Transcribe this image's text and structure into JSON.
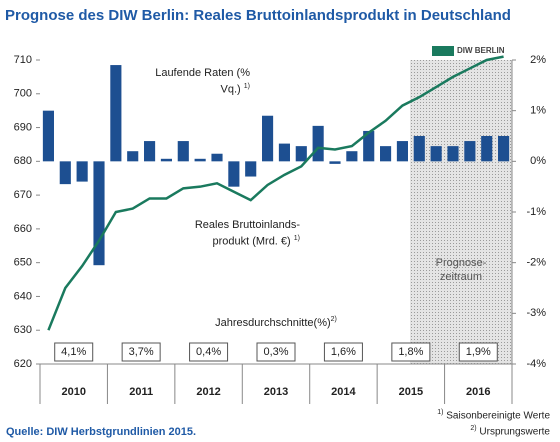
{
  "chart_data": {
    "type": "combo",
    "title": "Prognose des DIW Berlin: Reales Bruttoinlandsprodukt in Deutschland",
    "logo": "DIW BERLIN",
    "years": [
      "2010",
      "2011",
      "2012",
      "2013",
      "2014",
      "2015",
      "2016"
    ],
    "series": [
      {
        "name": "Laufende Raten (% Vq.)",
        "footnote_mark": "1)",
        "type": "bar",
        "axis": "y2",
        "color": "#1d4f91",
        "values": [
          1.0,
          -0.45,
          -0.4,
          -2.05,
          1.9,
          0.2,
          0.4,
          0.05,
          0.4,
          0.05,
          0.15,
          -0.5,
          -0.3,
          0.9,
          0.35,
          0.3,
          0.7,
          -0.05,
          0.2,
          0.6,
          0.3,
          0.4,
          0.5,
          0.3,
          0.3,
          0.4,
          0.5,
          0.5
        ]
      },
      {
        "name": "Reales Bruttoinlands-produkt (Mrd. €)",
        "footnote_mark": "1)",
        "type": "line",
        "color": "#1a7a5e",
        "values": [
          630,
          642.5,
          649,
          656.5,
          665,
          666,
          669,
          669,
          672,
          672.5,
          673.5,
          671,
          668.5,
          673,
          676,
          678.5,
          684,
          683.5,
          684.5,
          688.5,
          692,
          696.5,
          699,
          702,
          705,
          707.5,
          710,
          711
        ]
      }
    ],
    "ylim": [
      620,
      710
    ],
    "yticks": [
      620,
      630,
      640,
      650,
      660,
      670,
      680,
      690,
      700,
      710
    ],
    "y2lim": [
      -4,
      2
    ],
    "y2ticks": [
      {
        "value": -4,
        "label": "-4%"
      },
      {
        "value": -3,
        "label": "-3%"
      },
      {
        "value": -2,
        "label": "-2%"
      },
      {
        "value": -1,
        "label": "-1%"
      },
      {
        "value": 0,
        "label": "0%"
      },
      {
        "value": 1,
        "label": "1%"
      },
      {
        "value": 2,
        "label": "2%"
      }
    ],
    "grid": false,
    "annual_averages": {
      "title": "Jahresdurchschnitte(%)",
      "footnote_mark": "2)",
      "labels": [
        "4,1%",
        "3,7%",
        "0,4%",
        "0,3%",
        "1,6%",
        "1,8%",
        "1,9%"
      ]
    },
    "forecast_label": "Prognose-zeitraum",
    "source": "Quelle: DIW Herbstgrundlinien 2015.",
    "footnotes": [
      {
        "mark": "1)",
        "text": "Saisonbereinigte Werte"
      },
      {
        "mark": "2)",
        "text": "Ursprungswerte"
      }
    ]
  }
}
